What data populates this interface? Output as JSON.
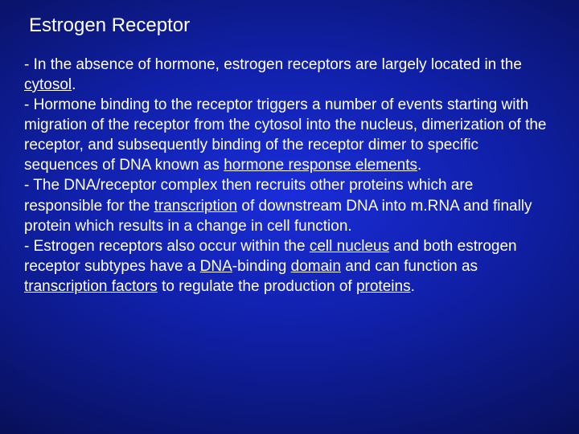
{
  "background_gradient": {
    "type": "radial",
    "center_color": "#1a2dd9",
    "mid_color": "#1020a8",
    "edge_color": "#020520"
  },
  "text_color": "#ffffff",
  "title": {
    "text": "Estrogen Receptor",
    "fontsize": 24
  },
  "body": {
    "fontsize": 19,
    "lines": [
      {
        "prefix": "- ",
        "segments": [
          {
            "t": "In the absence of hormone, estrogen receptors are largely located in the "
          },
          {
            "t": "cytosol",
            "u": true
          },
          {
            "t": "."
          }
        ]
      },
      {
        "prefix": "- ",
        "segments": [
          {
            "t": "Hormone binding to the receptor triggers a number of events starting with migration of the receptor from the cytosol into the nucleus, dimerization of the receptor, and subsequently binding of the receptor dimer to specific sequences of DNA known as "
          },
          {
            "t": "hormone response elements",
            "u": true
          },
          {
            "t": "."
          }
        ]
      },
      {
        "prefix": "- ",
        "segments": [
          {
            "t": "The DNA/receptor complex then recruits other proteins which are responsible for the "
          },
          {
            "t": "transcription",
            "u": true
          },
          {
            "t": " of downstream DNA into m.RNA and finally protein which results in a change in cell function."
          }
        ]
      },
      {
        "prefix": "- ",
        "segments": [
          {
            "t": "Estrogen receptors also occur within the "
          },
          {
            "t": "cell nucleus",
            "u": true
          },
          {
            "t": " and both estrogen receptor subtypes have a "
          },
          {
            "t": "DNA",
            "u": true
          },
          {
            "t": "-binding "
          },
          {
            "t": "domain",
            "u": true
          },
          {
            "t": " and can function as "
          },
          {
            "t": "transcription factors",
            "u": true
          },
          {
            "t": " to regulate the production of "
          },
          {
            "t": "proteins",
            "u": true
          },
          {
            "t": "."
          }
        ]
      }
    ]
  }
}
